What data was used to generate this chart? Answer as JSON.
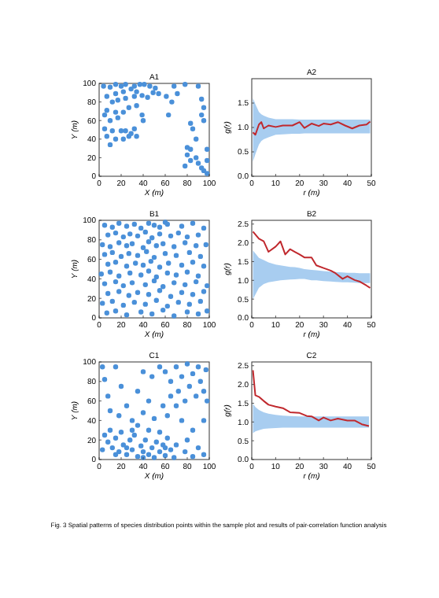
{
  "chart_data": [
    {
      "type": "scatter",
      "title": "A1",
      "xlabel": "X (m)",
      "ylabel": "Y (m)",
      "xlim": [
        0,
        100
      ],
      "ylim": [
        0,
        100
      ],
      "xticks": [
        0,
        20,
        40,
        60,
        80,
        100
      ],
      "yticks": [
        0,
        20,
        40,
        60,
        80,
        100
      ],
      "marker": "circle",
      "series": [
        {
          "color": "#4a90d9",
          "x": [
            4,
            10,
            15,
            20,
            24,
            32,
            37,
            41,
            46,
            51,
            29,
            34,
            22,
            15,
            7,
            12,
            17,
            24,
            32,
            39,
            44,
            49,
            54,
            27,
            34,
            22,
            15,
            7,
            5,
            10,
            17,
            5,
            12,
            7,
            15,
            20,
            24,
            32,
            22,
            27,
            29,
            34,
            39,
            10,
            66,
            71,
            68,
            78,
            61,
            63,
            90,
            93,
            95,
            93,
            95,
            83,
            85,
            88,
            80,
            83,
            80,
            83,
            88,
            90,
            93,
            95,
            98,
            98,
            98,
            78,
            40
          ],
          "values": [
            97,
            96,
            99,
            97,
            99,
            97,
            99,
            99,
            97,
            95,
            94,
            91,
            91,
            89,
            86,
            80,
            82,
            84,
            86,
            87,
            85,
            90,
            89,
            74,
            76,
            69,
            69,
            71,
            66,
            60,
            63,
            51,
            49,
            43,
            40,
            49,
            49,
            51,
            40,
            43,
            46,
            43,
            66,
            34,
            80,
            89,
            97,
            99,
            86,
            66,
            97,
            83,
            74,
            66,
            60,
            57,
            51,
            40,
            31,
            29,
            23,
            17,
            20,
            14,
            9,
            6,
            3,
            17,
            29,
            11,
            60
          ]
        }
      ]
    },
    {
      "type": "line",
      "title": "A2",
      "xlabel": "r (m)",
      "ylabel": "g(r)",
      "xlim": [
        0,
        50
      ],
      "ylim": [
        0,
        2
      ],
      "xticks": [
        0,
        10,
        20,
        30,
        40,
        50
      ],
      "yticks": [
        {
          "value": 0,
          "label": "0.0"
        },
        {
          "value": 0.5,
          "label": "0.5"
        },
        {
          "value": 1,
          "label": "1.0"
        },
        {
          "value": 1.5,
          "label": "1.5"
        }
      ],
      "series": [
        {
          "color": "#c0282d",
          "x": [
            0.5,
            1.5,
            3,
            4,
            5,
            7,
            10,
            13,
            17,
            20,
            22,
            25,
            28,
            30,
            33,
            36,
            39,
            42,
            45,
            48,
            49.5
          ],
          "values": [
            0.9,
            0.85,
            1.06,
            1.11,
            0.98,
            1.04,
            1.01,
            1.04,
            1.04,
            1.11,
            0.99,
            1.08,
            1.03,
            1.08,
            1.06,
            1.11,
            1.04,
            0.98,
            1.04,
            1.06,
            1.12
          ],
          "lower": [
            0.3,
            0.45,
            0.65,
            0.72,
            0.76,
            0.8,
            0.85,
            0.86,
            0.87,
            0.87,
            0.88,
            0.88,
            0.88,
            0.88,
            0.88,
            0.88,
            0.88,
            0.88,
            0.88,
            0.88,
            0.88
          ],
          "upper": [
            1.6,
            1.48,
            1.32,
            1.27,
            1.24,
            1.2,
            1.17,
            1.17,
            1.17,
            1.16,
            1.16,
            1.16,
            1.16,
            1.16,
            1.16,
            1.16,
            1.16,
            1.16,
            1.16,
            1.16,
            1.16
          ]
        }
      ]
    },
    {
      "type": "scatter",
      "title": "B1",
      "xlabel": "X (m)",
      "ylabel": "Y (m)",
      "xlim": [
        0,
        100
      ],
      "ylim": [
        0,
        100
      ],
      "xticks": [
        0,
        20,
        40,
        60,
        80,
        100
      ],
      "yticks": [
        0,
        20,
        40,
        60,
        80,
        100
      ],
      "marker": "circle",
      "series": [
        {
          "color": "#4a90d9",
          "x": [
            5,
            12,
            18,
            25,
            32,
            38,
            45,
            50,
            55,
            60,
            62,
            75,
            85,
            95,
            8,
            15,
            22,
            28,
            35,
            42,
            48,
            55,
            65,
            72,
            80,
            90,
            3,
            10,
            18,
            25,
            30,
            40,
            45,
            52,
            58,
            68,
            78,
            88,
            97,
            5,
            12,
            20,
            27,
            35,
            43,
            50,
            60,
            70,
            82,
            92,
            8,
            15,
            25,
            33,
            40,
            47,
            55,
            63,
            75,
            85,
            95,
            2,
            10,
            18,
            28,
            38,
            45,
            52,
            62,
            70,
            80,
            90,
            5,
            15,
            22,
            30,
            42,
            50,
            58,
            68,
            78,
            88,
            98,
            8,
            18,
            27,
            35,
            45,
            55,
            65,
            75,
            85,
            95,
            3,
            12,
            22,
            32,
            42,
            52,
            62,
            72,
            82,
            92,
            7,
            15,
            25,
            38,
            48,
            58,
            68,
            80,
            90,
            98
          ],
          "values": [
            95,
            93,
            97,
            94,
            96,
            92,
            97,
            95,
            93,
            98,
            96,
            94,
            97,
            92,
            85,
            87,
            83,
            86,
            84,
            88,
            82,
            86,
            84,
            87,
            83,
            85,
            75,
            73,
            77,
            74,
            76,
            72,
            78,
            74,
            76,
            73,
            77,
            74,
            75,
            65,
            67,
            63,
            66,
            64,
            68,
            62,
            66,
            64,
            67,
            63,
            55,
            57,
            53,
            56,
            54,
            58,
            52,
            56,
            54,
            57,
            53,
            45,
            47,
            43,
            46,
            44,
            48,
            42,
            46,
            44,
            47,
            43,
            35,
            37,
            33,
            36,
            34,
            38,
            32,
            36,
            34,
            37,
            33,
            25,
            27,
            23,
            26,
            24,
            28,
            22,
            26,
            24,
            27,
            15,
            17,
            13,
            16,
            14,
            18,
            12,
            16,
            14,
            17,
            5,
            7,
            3,
            6,
            4,
            8,
            2,
            6,
            4,
            7
          ]
        }
      ]
    },
    {
      "type": "line",
      "title": "B2",
      "xlabel": "r (m)",
      "ylabel": "g(r)",
      "xlim": [
        0,
        50
      ],
      "ylim": [
        0,
        2.6
      ],
      "xticks": [
        0,
        10,
        20,
        30,
        40,
        50
      ],
      "yticks": [
        {
          "value": 0,
          "label": "0.0"
        },
        {
          "value": 0.5,
          "label": "0.5"
        },
        {
          "value": 1,
          "label": "1.0"
        },
        {
          "value": 1.5,
          "label": "1.5"
        },
        {
          "value": 2,
          "label": "2.0"
        },
        {
          "value": 2.5,
          "label": "2.5"
        }
      ],
      "series": [
        {
          "color": "#c0282d",
          "x": [
            0.5,
            3,
            5,
            7,
            10,
            12,
            14,
            16,
            18,
            20,
            22,
            25,
            27,
            30,
            33,
            35,
            38,
            40,
            43,
            45,
            48,
            49.5
          ],
          "values": [
            2.3,
            2.11,
            2.04,
            1.76,
            1.9,
            2.04,
            1.69,
            1.83,
            1.76,
            1.69,
            1.61,
            1.61,
            1.4,
            1.33,
            1.26,
            1.19,
            1.04,
            1.11,
            1.01,
            0.97,
            0.86,
            0.8
          ],
          "lower": [
            0.5,
            0.8,
            0.9,
            0.95,
            0.98,
            1.0,
            1.01,
            1.02,
            1.03,
            1.04,
            1.04,
            1.0,
            1.0,
            0.98,
            0.97,
            0.96,
            0.95,
            0.95,
            0.94,
            0.93,
            0.93,
            0.93
          ],
          "upper": [
            1.8,
            1.6,
            1.54,
            1.48,
            1.42,
            1.4,
            1.38,
            1.36,
            1.35,
            1.33,
            1.3,
            1.28,
            1.27,
            1.25,
            1.23,
            1.22,
            1.21,
            1.2,
            1.2,
            1.19,
            1.19,
            1.19
          ]
        }
      ]
    },
    {
      "type": "scatter",
      "title": "C1",
      "xlabel": "X (m)",
      "ylabel": "Y (m)",
      "xlim": [
        0,
        100
      ],
      "ylim": [
        0,
        100
      ],
      "xticks": [
        0,
        20,
        40,
        60,
        80,
        100
      ],
      "yticks": [
        0,
        20,
        40,
        60,
        80,
        100
      ],
      "marker": "circle",
      "series": [
        {
          "color": "#4a90d9",
          "x": [
            5,
            8,
            10,
            12,
            15,
            18,
            20,
            22,
            25,
            28,
            30,
            32,
            35,
            38,
            40,
            42,
            45,
            48,
            50,
            52,
            55,
            58,
            60,
            62,
            65,
            68,
            70,
            45,
            35,
            55,
            15,
            25,
            40,
            60,
            30,
            78,
            85,
            95,
            90,
            60,
            65,
            70,
            72,
            75,
            78,
            80,
            82,
            85,
            88,
            90,
            92,
            95,
            97,
            98,
            65,
            70,
            62,
            58,
            75,
            3,
            5,
            8,
            10,
            18,
            25,
            30,
            40,
            45,
            50,
            35,
            48,
            40,
            55,
            20,
            15,
            85,
            95,
            80,
            3
          ],
          "values": [
            25,
            18,
            30,
            12,
            22,
            8,
            28,
            15,
            5,
            20,
            10,
            25,
            3,
            14,
            8,
            20,
            5,
            12,
            2,
            18,
            8,
            15,
            4,
            22,
            10,
            2,
            15,
            30,
            35,
            28,
            5,
            12,
            2,
            12,
            30,
            8,
            3,
            5,
            12,
            90,
            80,
            95,
            70,
            85,
            60,
            98,
            75,
            88,
            65,
            95,
            80,
            70,
            92,
            60,
            65,
            55,
            45,
            55,
            40,
            95,
            82,
            65,
            50,
            45,
            55,
            40,
            48,
            60,
            42,
            70,
            85,
            90,
            95,
            75,
            95,
            30,
            40,
            20,
            10
          ]
        }
      ]
    },
    {
      "type": "line",
      "title": "C2",
      "xlabel": "r (m)",
      "ylabel": "g(r)",
      "xlim": [
        0,
        50
      ],
      "ylim": [
        0,
        2.6
      ],
      "xticks": [
        0,
        10,
        20,
        30,
        40,
        50
      ],
      "yticks": [
        {
          "value": 0,
          "label": "0.0"
        },
        {
          "value": 0.5,
          "label": "0.5"
        },
        {
          "value": 1,
          "label": "1.0"
        },
        {
          "value": 1.5,
          "label": "1.5"
        },
        {
          "value": 2,
          "label": "2.0"
        },
        {
          "value": 2.5,
          "label": "2.5"
        }
      ],
      "annotations": [
        "Fig. 3  Spatial patterns of species distribution points within the sample plot and results of pair-correlation function analysis"
      ],
      "series": [
        {
          "color": "#c0282d",
          "x": [
            0.5,
            1.5,
            3,
            5,
            7,
            10,
            13,
            16,
            20,
            23,
            25,
            28,
            30,
            33,
            36,
            40,
            43,
            46,
            49
          ],
          "values": [
            2.38,
            1.71,
            1.67,
            1.56,
            1.46,
            1.41,
            1.37,
            1.26,
            1.24,
            1.16,
            1.15,
            1.04,
            1.12,
            1.04,
            1.09,
            1.04,
            1.04,
            0.94,
            0.89
          ],
          "lower": [
            0.7,
            0.75,
            0.78,
            0.82,
            0.83,
            0.84,
            0.85,
            0.85,
            0.85,
            0.85,
            0.85,
            0.85,
            0.85,
            0.85,
            0.85,
            0.85,
            0.85,
            0.85,
            0.85
          ],
          "upper": [
            1.49,
            1.4,
            1.32,
            1.26,
            1.22,
            1.19,
            1.17,
            1.16,
            1.15,
            1.15,
            1.15,
            1.15,
            1.15,
            1.15,
            1.15,
            1.15,
            1.15,
            1.15,
            1.15
          ]
        }
      ]
    }
  ]
}
